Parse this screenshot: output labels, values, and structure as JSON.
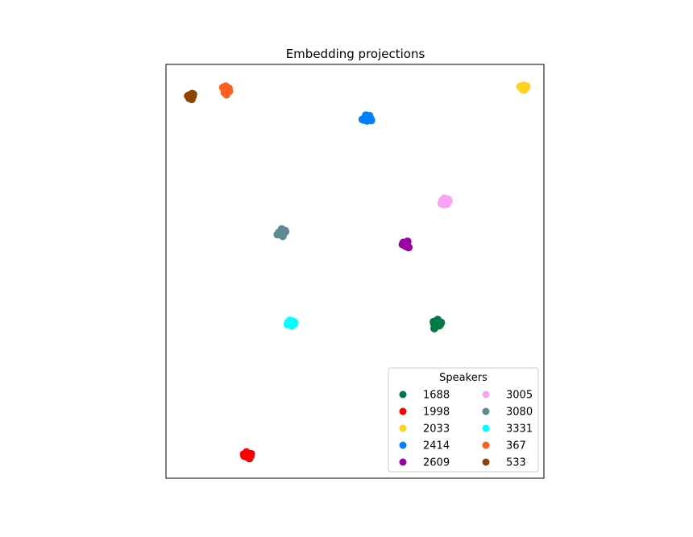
{
  "chart_data": {
    "type": "scatter",
    "title": "Embedding projections",
    "xlabel": "",
    "ylabel": "",
    "axis_ticks": "hidden",
    "xlim": [
      0,
      100
    ],
    "ylim": [
      0,
      100
    ],
    "grid": false,
    "legend": {
      "title": "Speakers",
      "placement": "lower-right",
      "columns": 2
    },
    "series": [
      {
        "name": "1688",
        "color": "#007a45",
        "points": [
          [
            71.5,
            37.5
          ],
          [
            72.8,
            37.6
          ],
          [
            71.2,
            36.6
          ],
          [
            72.3,
            36.9
          ],
          [
            70.8,
            37.8
          ],
          [
            71.9,
            38.3
          ],
          [
            71.0,
            36.2
          ],
          [
            72.6,
            37.2
          ],
          [
            70.9,
            37.4
          ]
        ]
      },
      {
        "name": "1998",
        "color": "#ff0000",
        "points": [
          [
            21.0,
            5.6
          ],
          [
            22.5,
            5.9
          ],
          [
            21.4,
            5.2
          ],
          [
            22.1,
            4.8
          ],
          [
            20.6,
            5.8
          ],
          [
            22.4,
            5.4
          ],
          [
            21.3,
            6.3
          ],
          [
            21.8,
            5.5
          ],
          [
            20.7,
            5.4
          ]
        ]
      },
      {
        "name": "2033",
        "color": "#ffd21f",
        "points": [
          [
            94.1,
            94.3
          ],
          [
            94.7,
            94.9
          ],
          [
            95.3,
            94.4
          ],
          [
            94.5,
            93.9
          ],
          [
            95.0,
            94.2
          ],
          [
            93.7,
            94.6
          ],
          [
            94.3,
            94.1
          ],
          [
            95.4,
            94.7
          ],
          [
            94.9,
            93.9
          ],
          [
            94.2,
            94.8
          ]
        ]
      },
      {
        "name": "2414",
        "color": "#0080ff",
        "points": [
          [
            52.9,
            87.7
          ],
          [
            52.4,
            86.6
          ],
          [
            53.8,
            87.6
          ],
          [
            52.7,
            87.0
          ],
          [
            54.1,
            86.9
          ],
          [
            53.2,
            86.4
          ],
          [
            52.0,
            86.7
          ],
          [
            53.5,
            87.2
          ],
          [
            54.3,
            86.5
          ]
        ]
      },
      {
        "name": "2609",
        "color": "#9a00a3",
        "points": [
          [
            63.2,
            56.7
          ],
          [
            63.8,
            56.0
          ],
          [
            62.6,
            56.5
          ],
          [
            63.9,
            57.2
          ],
          [
            63.4,
            56.1
          ],
          [
            62.8,
            56.9
          ],
          [
            64.2,
            55.8
          ],
          [
            63.5,
            56.4
          ]
        ]
      },
      {
        "name": "3005",
        "color": "#f9a3f7",
        "points": [
          [
            73.1,
            67.1
          ],
          [
            73.8,
            66.6
          ],
          [
            74.6,
            67.4
          ],
          [
            73.4,
            66.2
          ],
          [
            74.2,
            66.8
          ],
          [
            72.9,
            66.4
          ],
          [
            74.8,
            67.0
          ],
          [
            73.6,
            67.6
          ],
          [
            74.4,
            66.3
          ]
        ]
      },
      {
        "name": "3080",
        "color": "#5e8a92",
        "points": [
          [
            30.8,
            59.7
          ],
          [
            30.3,
            59.1
          ],
          [
            31.5,
            59.8
          ],
          [
            29.9,
            59.4
          ],
          [
            30.6,
            60.2
          ],
          [
            31.1,
            59.2
          ],
          [
            29.5,
            58.9
          ],
          [
            30.9,
            58.5
          ],
          [
            31.6,
            59.6
          ]
        ]
      },
      {
        "name": "3331",
        "color": "#00ffff",
        "points": [
          [
            32.5,
            37.5
          ],
          [
            33.4,
            37.7
          ],
          [
            33.0,
            37.1
          ],
          [
            32.3,
            37.6
          ],
          [
            33.9,
            37.3
          ],
          [
            32.8,
            38.1
          ],
          [
            33.6,
            37.9
          ],
          [
            32.2,
            37.2
          ],
          [
            33.3,
            36.9
          ],
          [
            34.0,
            37.6
          ]
        ]
      },
      {
        "name": "367",
        "color": "#ff5e23",
        "points": [
          [
            15.3,
            94.1
          ],
          [
            16.1,
            93.6
          ],
          [
            15.8,
            94.7
          ],
          [
            16.7,
            93.5
          ],
          [
            15.5,
            93.2
          ],
          [
            16.0,
            92.7
          ],
          [
            16.6,
            94.2
          ],
          [
            15.1,
            94.4
          ]
        ]
      },
      {
        "name": "533",
        "color": "#8b4500",
        "points": [
          [
            6.1,
            92.5
          ],
          [
            6.6,
            92.2
          ],
          [
            7.2,
            92.8
          ],
          [
            6.2,
            91.8
          ],
          [
            7.1,
            92.3
          ],
          [
            6.8,
            91.6
          ],
          [
            5.8,
            92.4
          ],
          [
            6.9,
            92.9
          ],
          [
            6.4,
            92.6
          ]
        ]
      }
    ]
  }
}
